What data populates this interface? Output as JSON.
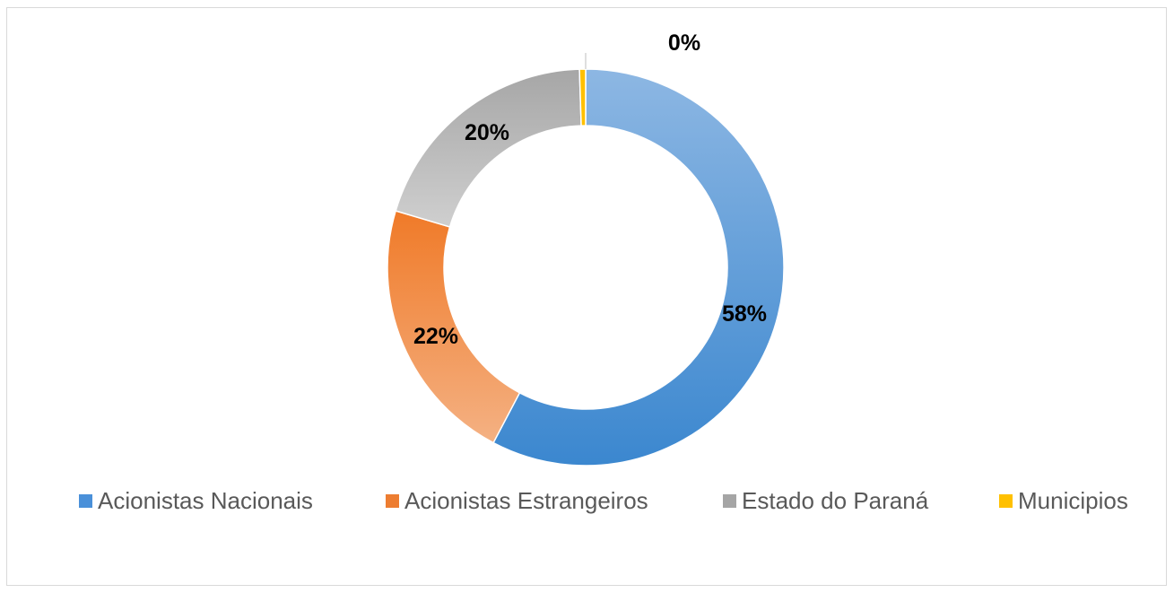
{
  "chart_data": {
    "type": "pie",
    "donut": true,
    "legend_position": "bottom",
    "slices": [
      {
        "name": "Acionistas Nacionais",
        "value": 58,
        "label": "58%",
        "color_start": "#8db7e3",
        "color_end": "#3b87cf",
        "swatch": "#4a90d9"
      },
      {
        "name": "Acionistas Estrangeiros",
        "value": 22,
        "label": "22%",
        "color_start": "#f07a28",
        "color_end": "#f4b183",
        "swatch": "#ed7d31"
      },
      {
        "name": "Estado do Paraná",
        "value": 20,
        "label": "20%",
        "color_start": "#a6a6a6",
        "color_end": "#cfcfcf",
        "swatch": "#a5a5a5"
      },
      {
        "name": "Municipios",
        "value": 0.5,
        "label": "0%",
        "color_start": "#ffc000",
        "color_end": "#ffc000",
        "swatch": "#ffc000"
      }
    ]
  }
}
